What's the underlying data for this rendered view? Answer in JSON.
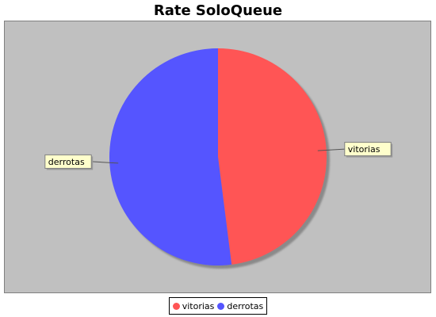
{
  "chart_data": {
    "type": "pie",
    "title": "Rate SoloQueue",
    "slices": [
      {
        "label": "vitorias",
        "value": 48,
        "color": "#ff5555"
      },
      {
        "label": "derrotas",
        "value": 52,
        "color": "#5555ff"
      }
    ],
    "legend": "bottom-center",
    "background_color": "#c0c0c0",
    "label_box_color": "#ffffcc"
  }
}
